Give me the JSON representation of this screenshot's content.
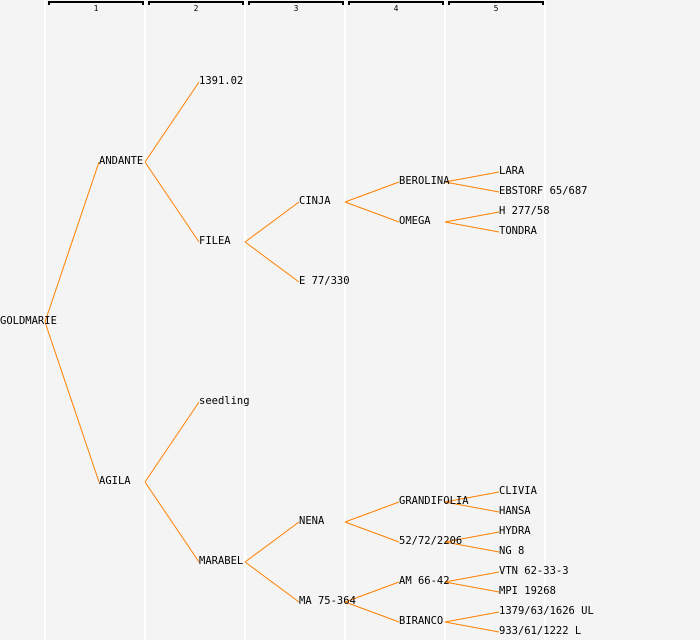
{
  "generations": [
    "1",
    "2",
    "3",
    "4",
    "5"
  ],
  "line_color": "#ff8000",
  "tree": {
    "name": "GOLDMARIE",
    "parents": [
      {
        "name": "ANDANTE",
        "parents": [
          {
            "name": "1391.02",
            "parents": []
          },
          {
            "name": "FILEA",
            "parents": [
              {
                "name": "CINJA",
                "parents": [
                  {
                    "name": "BEROLINA",
                    "parents": [
                      {
                        "name": "LARA"
                      },
                      {
                        "name": "EBSTORF 65/687"
                      }
                    ]
                  },
                  {
                    "name": "OMEGA",
                    "parents": [
                      {
                        "name": "H 277/58"
                      },
                      {
                        "name": "TONDRA"
                      }
                    ]
                  }
                ]
              },
              {
                "name": "E 77/330",
                "parents": []
              }
            ]
          }
        ]
      },
      {
        "name": "AGILA",
        "parents": [
          {
            "name": "seedling",
            "parents": []
          },
          {
            "name": "MARABEL",
            "parents": [
              {
                "name": "NENA",
                "parents": [
                  {
                    "name": "GRANDIFOLIA",
                    "parents": [
                      {
                        "name": "CLIVIA"
                      },
                      {
                        "name": "HANSA"
                      }
                    ]
                  },
                  {
                    "name": "52/72/2206",
                    "parents": [
                      {
                        "name": "HYDRA"
                      },
                      {
                        "name": "NG 8"
                      }
                    ]
                  }
                ]
              },
              {
                "name": "MA 75-364",
                "parents": [
                  {
                    "name": "AM 66-42",
                    "parents": [
                      {
                        "name": "VTN 62-33-3"
                      },
                      {
                        "name": "MPI 19268"
                      }
                    ]
                  },
                  {
                    "name": "BIRANCO",
                    "parents": [
                      {
                        "name": "1379/63/1626 UL"
                      },
                      {
                        "name": "933/61/1222 L"
                      }
                    ]
                  }
                ]
              }
            ]
          }
        ]
      }
    ]
  }
}
